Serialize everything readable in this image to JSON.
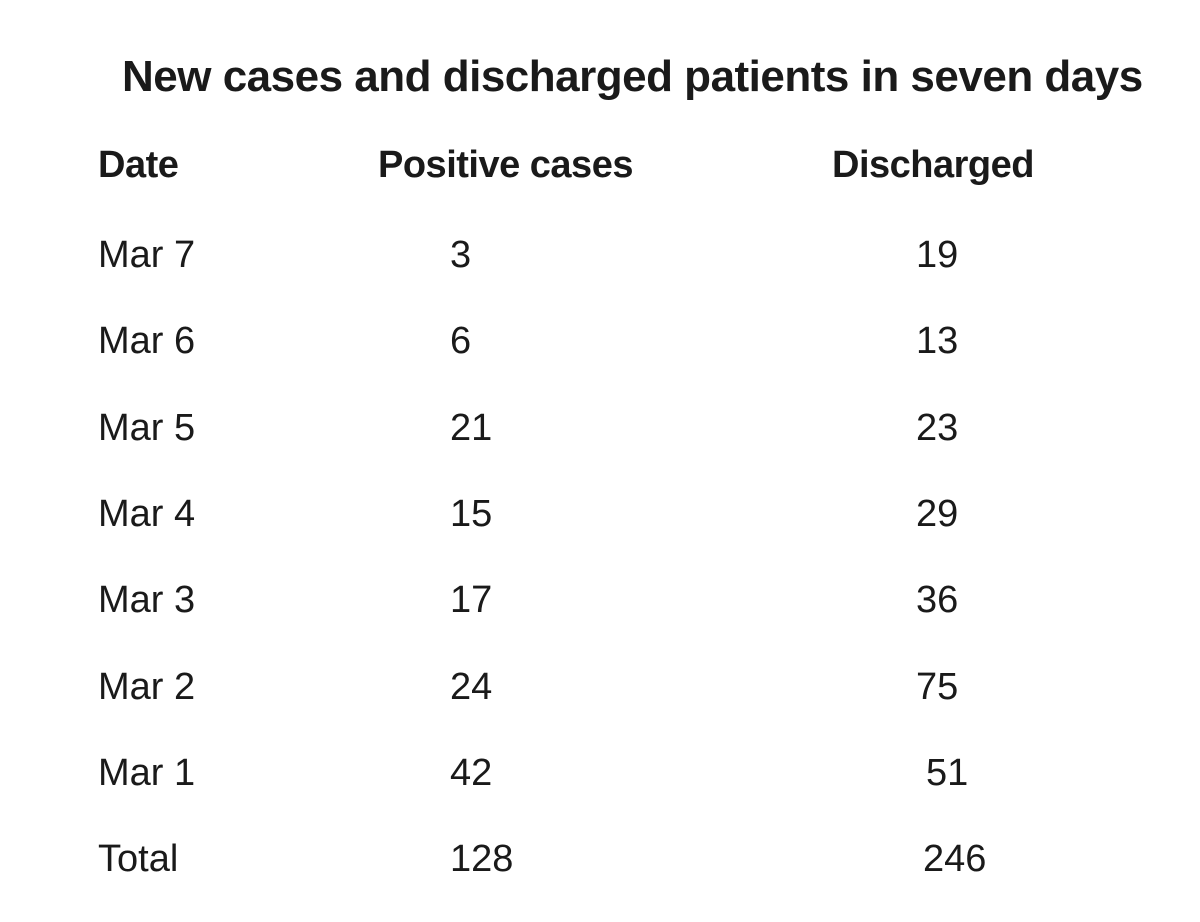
{
  "chart_data": {
    "type": "table",
    "title": "New cases and discharged patients in seven days",
    "columns": [
      "Date",
      "Positive cases",
      "Discharged"
    ],
    "rows": [
      {
        "date": "Mar 7",
        "positive": "3",
        "discharged": "19"
      },
      {
        "date": "Mar 6",
        "positive": "6",
        "discharged": "13"
      },
      {
        "date": "Mar 5",
        "positive": "21",
        "discharged": "23"
      },
      {
        "date": "Mar 4",
        "positive": "15",
        "discharged": "29"
      },
      {
        "date": "Mar 3",
        "positive": "17",
        "discharged": "36"
      },
      {
        "date": "Mar 2",
        "positive": "24",
        "discharged": "75"
      },
      {
        "date": "Mar 1",
        "positive": "42",
        "discharged": "51"
      },
      {
        "date": "Total",
        "positive": "128",
        "discharged": "246"
      }
    ]
  }
}
